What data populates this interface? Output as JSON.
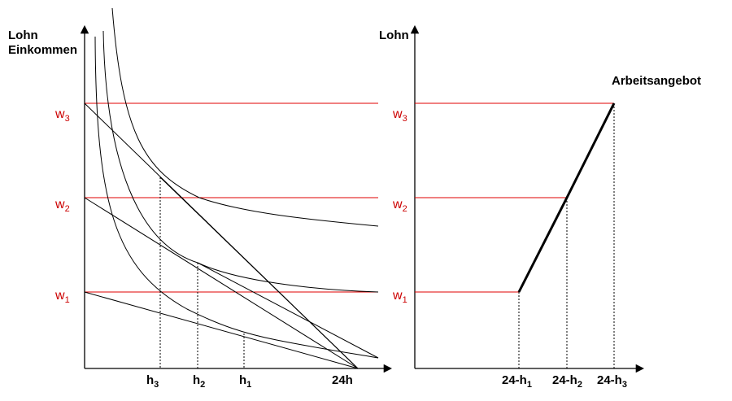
{
  "left": {
    "y_label": [
      "Lohn",
      "Einkommen"
    ],
    "wages": [
      {
        "base": "w",
        "sub": "3"
      },
      {
        "base": "w",
        "sub": "2"
      },
      {
        "base": "w",
        "sub": "1"
      }
    ],
    "hours": [
      {
        "base": "h",
        "sub": "3"
      },
      {
        "base": "h",
        "sub": "2"
      },
      {
        "base": "h",
        "sub": "1"
      }
    ],
    "endpoint": "24h"
  },
  "right": {
    "y_label": "Lohn",
    "curve_label": "Arbeitsangebot",
    "wages": [
      {
        "base": "w",
        "sub": "3"
      },
      {
        "base": "w",
        "sub": "2"
      },
      {
        "base": "w",
        "sub": "1"
      }
    ],
    "supply": [
      {
        "base": "24-h",
        "sub": "1"
      },
      {
        "base": "24-h",
        "sub": "2"
      },
      {
        "base": "24-h",
        "sub": "3"
      }
    ]
  }
}
